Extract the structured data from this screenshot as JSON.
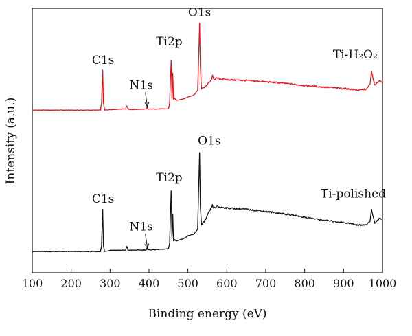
{
  "chart_data": {
    "type": "line",
    "xlabel": "Binding energy (eV)",
    "ylabel": "Intensity (a.u.)",
    "xlim": [
      100,
      1000
    ],
    "x_ticks": [
      "100",
      "200",
      "300",
      "400",
      "500",
      "600",
      "700",
      "800",
      "900",
      "1000"
    ],
    "y_ticks_shown": false,
    "grid": false,
    "colors": {
      "red_series": "#e8141a",
      "black_series": "#111111"
    },
    "series": [
      {
        "name": "Ti-H2O2",
        "color": "#e8141a",
        "baseline": 0.615,
        "x": [
          100,
          275,
          278,
          281,
          283,
          286,
          300,
          340,
          343,
          346,
          350,
          393,
          395,
          397,
          399,
          450,
          453,
          455,
          457,
          459,
          461,
          463,
          466,
          470,
          480,
          490,
          500,
          515,
          525,
          528,
          530,
          532,
          535,
          545,
          555,
          560,
          563,
          566,
          575,
          600,
          650,
          700,
          750,
          800,
          850,
          900,
          940,
          960,
          968,
          972,
          975,
          980,
          988,
          992,
          996,
          1000
        ],
        "y": [
          0.615,
          0.615,
          0.64,
          0.767,
          0.64,
          0.615,
          0.617,
          0.62,
          0.632,
          0.62,
          0.617,
          0.619,
          0.626,
          0.619,
          0.619,
          0.62,
          0.64,
          0.73,
          0.803,
          0.66,
          0.755,
          0.655,
          0.66,
          0.652,
          0.655,
          0.658,
          0.665,
          0.672,
          0.69,
          0.827,
          0.942,
          0.78,
          0.695,
          0.705,
          0.72,
          0.728,
          0.745,
          0.732,
          0.735,
          0.73,
          0.727,
          0.722,
          0.716,
          0.708,
          0.702,
          0.697,
          0.69,
          0.695,
          0.715,
          0.76,
          0.74,
          0.708,
          0.72,
          0.727,
          0.724,
          0.72
        ]
      },
      {
        "name": "Ti-polished",
        "color": "#111111",
        "baseline": 0.08,
        "x": [
          100,
          275,
          278,
          281,
          283,
          286,
          300,
          340,
          343,
          346,
          350,
          393,
          395,
          397,
          399,
          450,
          453,
          455,
          457,
          459,
          461,
          463,
          466,
          470,
          480,
          490,
          500,
          515,
          525,
          528,
          530,
          532,
          535,
          545,
          555,
          560,
          563,
          566,
          575,
          600,
          650,
          700,
          750,
          800,
          850,
          900,
          940,
          960,
          968,
          972,
          975,
          980,
          988,
          992,
          996,
          1000
        ],
        "y": [
          0.08,
          0.08,
          0.1,
          0.24,
          0.1,
          0.08,
          0.085,
          0.085,
          0.1,
          0.085,
          0.085,
          0.086,
          0.095,
          0.086,
          0.086,
          0.09,
          0.11,
          0.22,
          0.31,
          0.13,
          0.22,
          0.12,
          0.125,
          0.12,
          0.125,
          0.13,
          0.14,
          0.145,
          0.165,
          0.34,
          0.455,
          0.25,
          0.18,
          0.2,
          0.232,
          0.245,
          0.255,
          0.245,
          0.25,
          0.245,
          0.24,
          0.232,
          0.222,
          0.21,
          0.198,
          0.19,
          0.18,
          0.183,
          0.195,
          0.24,
          0.22,
          0.187,
          0.198,
          0.207,
          0.203,
          0.2
        ]
      }
    ],
    "annotations": [
      {
        "text": "C1s",
        "series": 0,
        "x": 282,
        "y": 0.79
      },
      {
        "text": "N1s",
        "series": 0,
        "x": 380,
        "y": 0.695,
        "arrow_to": [
          396,
          0.628
        ]
      },
      {
        "text": "Ti2p",
        "series": 0,
        "x": 452,
        "y": 0.86
      },
      {
        "text": "O1s",
        "series": 0,
        "x": 530,
        "y": 0.97
      },
      {
        "text": "Ti-H₂O₂",
        "series": 0,
        "x": 930,
        "y": 0.81
      },
      {
        "text": "C1s",
        "series": 1,
        "x": 282,
        "y": 0.265
      },
      {
        "text": "N1s",
        "series": 1,
        "x": 380,
        "y": 0.16,
        "arrow_to": [
          396,
          0.093
        ]
      },
      {
        "text": "Ti2p",
        "series": 1,
        "x": 452,
        "y": 0.345
      },
      {
        "text": "O1s",
        "series": 1,
        "x": 555,
        "y": 0.485
      },
      {
        "text": "Ti-polished",
        "series": 1,
        "x": 925,
        "y": 0.285
      }
    ]
  }
}
